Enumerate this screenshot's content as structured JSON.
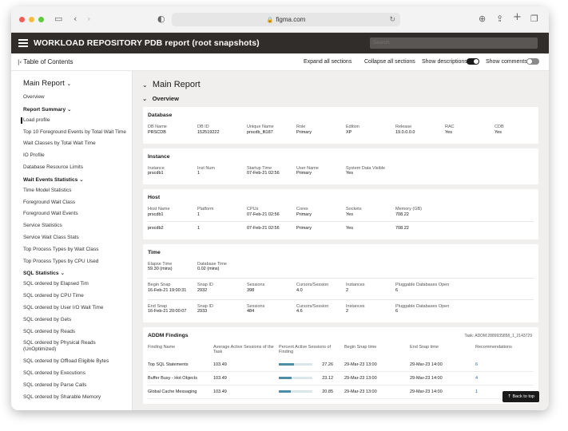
{
  "browser": {
    "url": "figma.com"
  },
  "app": {
    "title": "WORKLOAD REPOSITORY PDB report (root snapshots)",
    "search_placeholder": "Search"
  },
  "toolbar": {
    "toc": "Table of Contents",
    "expand": "Expand all sections",
    "collapse": "Collapse all sections",
    "show_desc": "Show descriptions",
    "show_comments": "Show comments",
    "show_desc_on": true,
    "show_comments_on": false
  },
  "sidebar": {
    "main": "Main Report",
    "overview": "Overview",
    "report_summary": "Report Summary",
    "summary_items": [
      "Load profile",
      "Top 10 Foreground Events by Total Wait Time",
      "Wait Classes by Total Wait Time",
      "IO Profile",
      "Database Resource Limits"
    ],
    "wait_events": "Wait Events Statistics",
    "wait_items": [
      "Time Model Statistics",
      "Foreground Wait Class",
      "Foreground Wait Events",
      "Service Statistics",
      "Service Wait Class Stats",
      "Top Process Types by Wait Class",
      "Top Process Types by CPU Used"
    ],
    "sql_stats": "SQL Statistics",
    "sql_items": [
      "SQL ordered by Elapsed Tim",
      "SQL ordered by CPU Time",
      "SQL ordered by User I/O Wait Time",
      "SQL ordered by Gets",
      "SQL ordered by Reads",
      "SQL ordered by Physical Reads (UnOptimized)",
      "SQL ordered by Offload Eligible Bytes",
      "SQL ordered by Executions",
      "SQL ordered by Parse Calls",
      "SQL ordered by Sharable Memory"
    ]
  },
  "main": {
    "title": "Main Report",
    "overview": "Overview"
  },
  "database": {
    "title": "Database",
    "labels": [
      "DB Name",
      "DB ID",
      "Unique Name",
      "Role",
      "Edition",
      "Release",
      "RAC",
      "CDB"
    ],
    "values": [
      "PRSCDB",
      "152519222",
      "prscdb_lfi187",
      "Primary",
      "XP",
      "19.0.0.0.0",
      "Yes",
      "Yes"
    ]
  },
  "instance": {
    "title": "Instance",
    "labels": [
      "Instance",
      "Inst Num",
      "Startup Time",
      "User Name",
      "System Data Visible"
    ],
    "values": [
      "prscdb1",
      "1",
      "07-Feb-21 02:56",
      "Primary",
      "Yes"
    ]
  },
  "host": {
    "title": "Host",
    "labels": [
      "Host Name",
      "Platform",
      "CPUs",
      "Cores",
      "Sockets",
      "Memory (GB)"
    ],
    "rows": [
      [
        "prscdb1",
        "1",
        "07-Feb-21 02:56",
        "Primary",
        "Yes",
        "708.22"
      ],
      [
        "prscdb2",
        "1",
        "07-Feb-21 02:56",
        "Primary",
        "Yes",
        "708.22"
      ]
    ]
  },
  "time": {
    "title": "Time",
    "elapse_label": "Elapse Time",
    "elapse_value": "59.30 (mins)",
    "dbtime_label": "Database Time",
    "dbtime_value": "0.02 (mins)",
    "snap_labels": [
      "Snap ID",
      "Sessions",
      "Cursors/Session",
      "Instances",
      "Pluggable Databases Open"
    ],
    "begin_label": "Begin Snap",
    "begin_time": "16-Feb-21 19:00:31",
    "begin_values": [
      "2932",
      "398",
      "4.0",
      "2",
      "6"
    ],
    "end_label": "End Snap",
    "end_time": "16-Feb-21 20:00:07",
    "end_values": [
      "2933",
      "484",
      "4.6",
      "2",
      "6"
    ]
  },
  "addm": {
    "title": "ADDM Findings",
    "task": "Task: ADDM:2889935858_1_2143729",
    "headers": [
      "Finding Name",
      "Average Active Sessions of the Task",
      "Percent Active Sessions of Finding",
      "Begin Snap time",
      "End Snap time",
      "Recommendations"
    ],
    "rows": [
      {
        "name": "Top SQL Statements",
        "avg": "103.49",
        "pct": 27.26,
        "pct_label": "27.26",
        "begin": "29-Mar-23 13:00",
        "end": "29-Mar-23 14:00",
        "recs": "6"
      },
      {
        "name": "Buffer Busy - Hot Objects",
        "avg": "103.49",
        "pct": 23.12,
        "pct_label": "23.12",
        "begin": "29-Mar-23 13:00",
        "end": "29-Mar-23 14:00",
        "recs": "4"
      },
      {
        "name": "Global Cache Messaging",
        "avg": "103.49",
        "pct": 20.85,
        "pct_label": "20.85",
        "begin": "29-Mar-23 13:00",
        "end": "29-Mar-23 14:00",
        "recs": "1"
      }
    ]
  },
  "back_to_top": "Back to top",
  "colors": {
    "appbar": "#312d2a",
    "bar_fill": "#4d8ea6",
    "bar_track": "#dbe6ea",
    "link": "#2a6aa8"
  }
}
